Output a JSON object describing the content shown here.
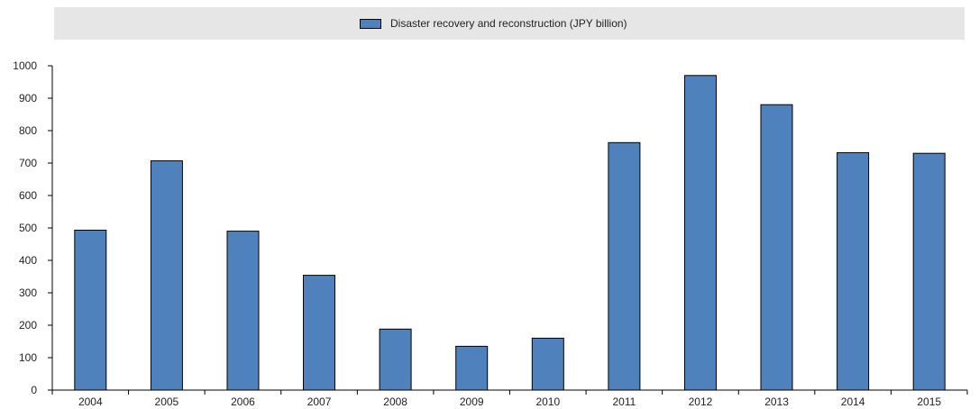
{
  "chart_data": {
    "type": "bar",
    "categories": [
      "2004",
      "2005",
      "2006",
      "2007",
      "2008",
      "2009",
      "2010",
      "2011",
      "2012",
      "2013",
      "2014",
      "2015"
    ],
    "series": [
      {
        "name": "Disaster recovery and reconstruction (JPY billion)",
        "values": [
          493,
          707,
          490,
          354,
          188,
          135,
          160,
          763,
          970,
          880,
          732,
          730
        ]
      }
    ],
    "title": "",
    "xlabel": "",
    "ylabel": "",
    "ylim": [
      0,
      1000
    ],
    "yticks": [
      "0",
      "100",
      "200",
      "300",
      "400",
      "500",
      "600",
      "700",
      "800",
      "900",
      "1000"
    ],
    "grid": false,
    "legend_position": "top",
    "colors": {
      "bar": "#4f81bd",
      "bar_edge": "#000000",
      "legend_background": "#e6e6e6",
      "axis": "#000000"
    }
  }
}
